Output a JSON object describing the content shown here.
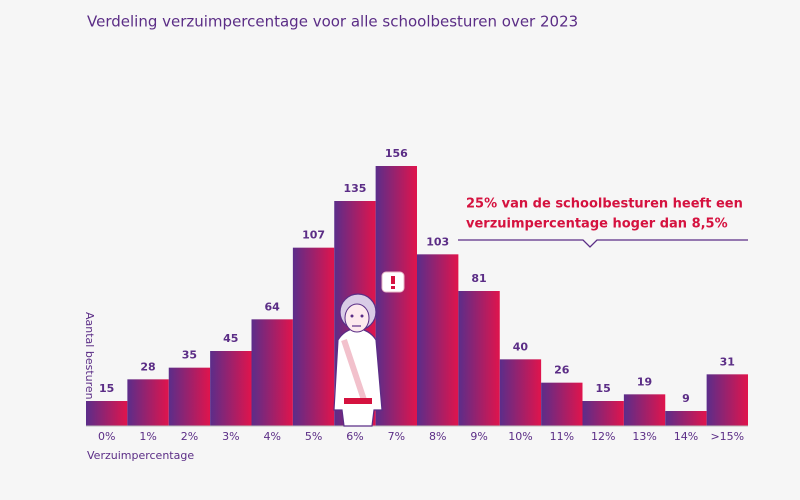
{
  "chart_data": {
    "type": "bar",
    "title": "Verdeling verzuimpercentage voor alle schoolbesturen over 2023",
    "x_label": "Verzuimpercentage",
    "y_label": "Aantal besturen",
    "categories": [
      "0%",
      "1%",
      "2%",
      "3%",
      "4%",
      "5%",
      "6%",
      "7%",
      "8%",
      "9%",
      "10%",
      "11%",
      "12%",
      "13%",
      "14%",
      ">15%"
    ],
    "values": [
      15,
      28,
      35,
      45,
      64,
      107,
      135,
      156,
      103,
      81,
      40,
      26,
      15,
      19,
      9,
      31
    ],
    "colors": [
      "#5b2d8a",
      "#e0144c"
    ],
    "annotation": [
      "25% van de schoolbesturen heeft een",
      "verzuimpercentage hoger dan 8,5%"
    ]
  }
}
